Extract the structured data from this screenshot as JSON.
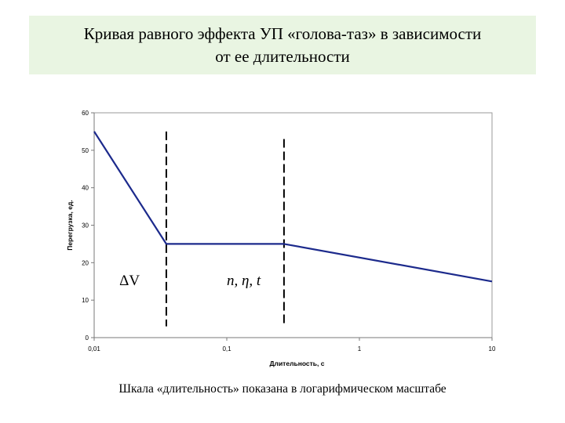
{
  "slide": {
    "title_line1": "Кривая равного эффекта УП «голова-таз» в зависимости",
    "title_line2": "от ее длительности",
    "caption": "Шкала «длительность» показана в логарифмическом масштабе",
    "title_bg": "#e9f5e2"
  },
  "chart_data": {
    "type": "line",
    "xscale": "log",
    "xlabel": "Длительность, с",
    "ylabel": "Перегрузка, ед.",
    "xlim": [
      0.01,
      10
    ],
    "ylim": [
      0,
      60
    ],
    "xticks": [
      0.01,
      0.1,
      1,
      10
    ],
    "xtick_labels": [
      "0,01",
      "0,1",
      "1",
      "10"
    ],
    "yticks": [
      0,
      10,
      20,
      30,
      40,
      50,
      60
    ],
    "ytick_labels": [
      "0",
      "10",
      "20",
      "30",
      "40",
      "50",
      "60"
    ],
    "grid": false,
    "series": [
      {
        "x": [
          0.01,
          0.035,
          0.27,
          10
        ],
        "y": [
          55,
          25,
          25,
          15
        ],
        "color": "#1c2a8c"
      }
    ],
    "vlines": [
      {
        "x": 0.035,
        "y": [
          3,
          55
        ],
        "style": "dashed"
      },
      {
        "x": 0.27,
        "y": [
          3,
          53
        ],
        "style": "dashed"
      }
    ],
    "annotations": [
      {
        "text": "ΔV",
        "x": 0.0155,
        "y": 14,
        "style": "normal"
      },
      {
        "text": "n,  η,  t",
        "x": 0.1,
        "y": 14,
        "style": "italic"
      }
    ]
  }
}
